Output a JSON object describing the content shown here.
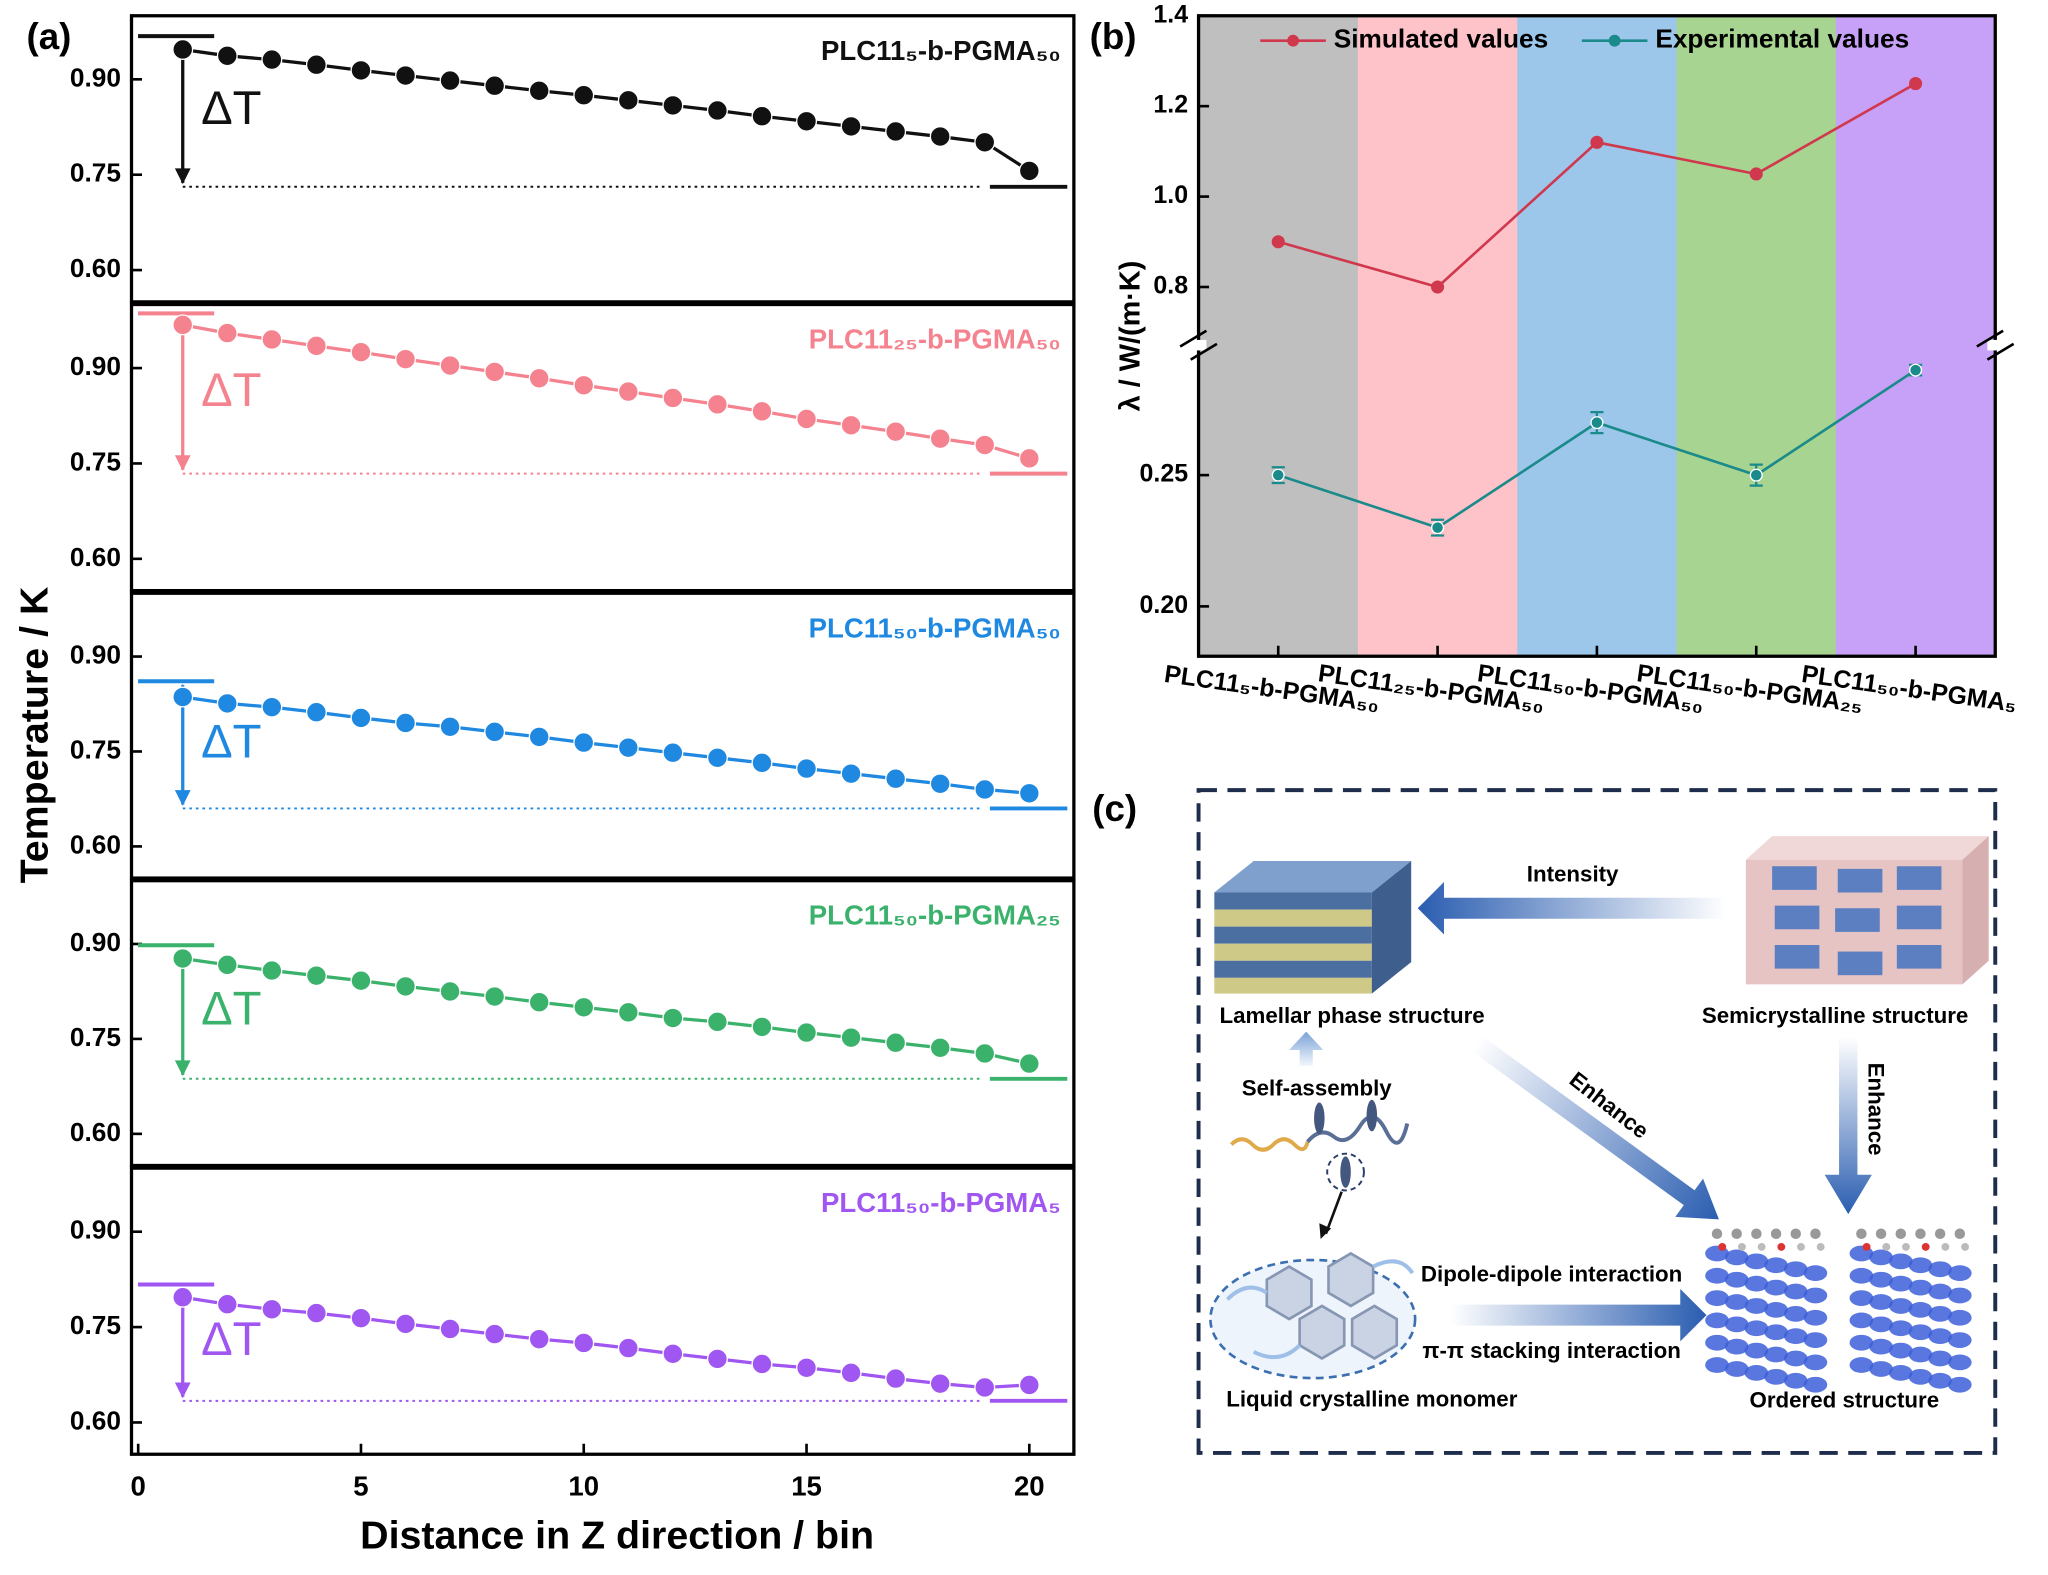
{
  "chart_data": [
    {
      "type": "line",
      "title": "PLC11₅-b-PGMA₅₀",
      "color": "#111111",
      "ylabel": "Temperature / K",
      "delta_label": "ΔT",
      "x": [
        1,
        2,
        3,
        4,
        5,
        6,
        7,
        8,
        9,
        10,
        11,
        12,
        13,
        14,
        15,
        16,
        17,
        18,
        19,
        20
      ],
      "values": [
        0.947,
        0.937,
        0.931,
        0.923,
        0.914,
        0.906,
        0.898,
        0.89,
        0.882,
        0.875,
        0.867,
        0.859,
        0.851,
        0.842,
        0.834,
        0.826,
        0.818,
        0.81,
        0.801,
        0.756
      ],
      "t_hot": 0.968,
      "t_cold": 0.731,
      "xlim": [
        -0.15,
        21
      ],
      "ylim": [
        0.55,
        1.0
      ],
      "yticks": [
        {
          "value": 0.6,
          "label": "0.60"
        },
        {
          "value": 0.75,
          "label": "0.75"
        },
        {
          "value": 0.9,
          "label": "0.90"
        }
      ]
    },
    {
      "type": "line",
      "title": "PLC11₂₅-b-PGMA₅₀",
      "color": "#f4838f",
      "delta_label": "ΔT",
      "x": [
        1,
        2,
        3,
        4,
        5,
        6,
        7,
        8,
        9,
        10,
        11,
        12,
        13,
        14,
        15,
        16,
        17,
        18,
        19,
        20
      ],
      "values": [
        0.968,
        0.955,
        0.945,
        0.935,
        0.925,
        0.914,
        0.904,
        0.894,
        0.884,
        0.873,
        0.863,
        0.853,
        0.843,
        0.832,
        0.82,
        0.81,
        0.8,
        0.789,
        0.779,
        0.758
      ],
      "t_hot": 0.986,
      "t_cold": 0.734,
      "xlim": [
        -0.15,
        21
      ],
      "ylim": [
        0.55,
        1.0
      ],
      "yticks": [
        {
          "value": 0.6,
          "label": "0.60"
        },
        {
          "value": 0.75,
          "label": "0.75"
        },
        {
          "value": 0.9,
          "label": "0.90"
        }
      ]
    },
    {
      "type": "line",
      "title": "PLC11₅₀-b-PGMA₅₀",
      "color": "#1f88e0",
      "delta_label": "ΔT",
      "x": [
        1,
        2,
        3,
        4,
        5,
        6,
        7,
        8,
        9,
        10,
        11,
        12,
        13,
        14,
        15,
        16,
        17,
        18,
        19,
        20
      ],
      "values": [
        0.836,
        0.826,
        0.82,
        0.812,
        0.803,
        0.795,
        0.789,
        0.781,
        0.773,
        0.764,
        0.756,
        0.748,
        0.74,
        0.732,
        0.723,
        0.715,
        0.707,
        0.699,
        0.69,
        0.684
      ],
      "t_hot": 0.861,
      "t_cold": 0.66,
      "xlim": [
        -0.15,
        21
      ],
      "ylim": [
        0.55,
        1.0
      ],
      "yticks": [
        {
          "value": 0.6,
          "label": "0.60"
        },
        {
          "value": 0.75,
          "label": "0.75"
        },
        {
          "value": 0.9,
          "label": "0.90"
        }
      ]
    },
    {
      "type": "line",
      "title": "PLC11₅₀-b-PGMA₂₅",
      "color": "#3bb26c",
      "delta_label": "ΔT",
      "x": [
        1,
        2,
        3,
        4,
        5,
        6,
        7,
        8,
        9,
        10,
        11,
        12,
        13,
        14,
        15,
        16,
        17,
        18,
        19,
        20
      ],
      "values": [
        0.877,
        0.867,
        0.858,
        0.85,
        0.842,
        0.833,
        0.825,
        0.817,
        0.808,
        0.8,
        0.792,
        0.783,
        0.777,
        0.769,
        0.76,
        0.752,
        0.744,
        0.736,
        0.727,
        0.711
      ],
      "t_hot": 0.898,
      "t_cold": 0.687,
      "xlim": [
        -0.15,
        21
      ],
      "ylim": [
        0.55,
        1.0
      ],
      "yticks": [
        {
          "value": 0.6,
          "label": "0.60"
        },
        {
          "value": 0.75,
          "label": "0.75"
        },
        {
          "value": 0.9,
          "label": "0.90"
        }
      ]
    },
    {
      "type": "line",
      "title": "PLC11₅₀-b-PGMA₅",
      "color": "#a056f0",
      "delta_label": "ΔT",
      "xlabel": "Distance in Z direction / bin",
      "x": [
        1,
        2,
        3,
        4,
        5,
        6,
        7,
        8,
        9,
        10,
        11,
        12,
        13,
        14,
        15,
        16,
        17,
        18,
        19,
        20
      ],
      "values": [
        0.797,
        0.786,
        0.778,
        0.772,
        0.764,
        0.755,
        0.747,
        0.739,
        0.731,
        0.725,
        0.717,
        0.708,
        0.7,
        0.692,
        0.686,
        0.678,
        0.669,
        0.661,
        0.655,
        0.659
      ],
      "t_hot": 0.817,
      "t_cold": 0.634,
      "xlim": [
        -0.15,
        21
      ],
      "ylim": [
        0.55,
        1.0
      ],
      "xticks": [
        0,
        5,
        10,
        15,
        20
      ],
      "yticks": [
        {
          "value": 0.6,
          "label": "0.60"
        },
        {
          "value": 0.75,
          "label": "0.75"
        },
        {
          "value": 0.9,
          "label": "0.90"
        }
      ]
    },
    {
      "type": "line",
      "ylabel": "λ / W/(m·K)",
      "categories": [
        "PLC11₅-b-PGMA₅₀",
        "PLC11₂₅-b-PGMA₅₀",
        "PLC11₅₀-b-PGMA₅₀",
        "PLC11₅₀-b-PGMA₂₅",
        "PLC11₅₀-b-PGMA₅"
      ],
      "band_colors": [
        "#bfbfbf",
        "#fdc3c8",
        "#9cc7ea",
        "#a8d491",
        "#c7a1f7"
      ],
      "series": [
        {
          "name": "Simulated values",
          "color": "#d0384e",
          "values": [
            0.9,
            0.8,
            1.12,
            1.05,
            1.25
          ]
        },
        {
          "name": "Experimental values",
          "color": "#1b8a8a",
          "values": [
            0.25,
            0.23,
            0.27,
            0.25,
            0.29
          ],
          "errors": [
            0.003,
            0.003,
            0.004,
            0.004,
            0.002
          ]
        }
      ],
      "y_segments": [
        {
          "ylim": [
            0.181,
            0.2985
          ],
          "yticks": [
            {
              "value": 0.2,
              "label": "0.20"
            },
            0.25
          ]
        },
        {
          "ylim": [
            0.68,
            1.4
          ],
          "yticks": [
            0.8,
            {
              "value": 1.0,
              "label": "1.0"
            },
            1.2,
            1.4
          ]
        }
      ]
    }
  ],
  "panel_labels": [
    "(a)",
    "(b)",
    "(c)"
  ],
  "diagram": {
    "labels": {
      "lamellar": "Lamellar phase structure",
      "semicrystalline": "Semicrystalline structure",
      "intensity": "Intensity",
      "self_assembly": "Self-assembly",
      "enhance_diagonal": "Enhance",
      "enhance_vertical": "Enhance",
      "dipole": "Dipole-dipole interaction",
      "stacking": "π-π stacking interaction",
      "monomer": "Liquid crystalline monomer",
      "ordered": "Ordered structure"
    }
  }
}
